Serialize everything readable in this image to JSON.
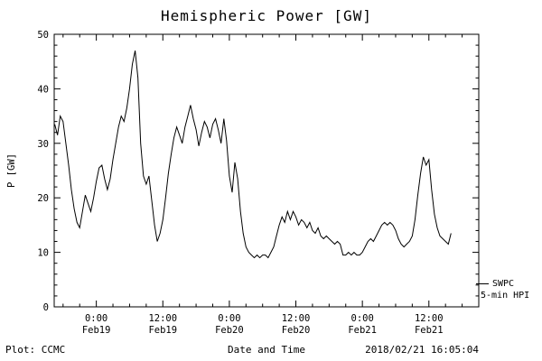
{
  "footer": {
    "credit": "Plot: CCMC",
    "timestamp": "2018/02/21 16:05:04"
  },
  "chart_data": {
    "type": "line",
    "title": "Hemispheric Power [GW]",
    "xlabel": "Date and Time",
    "ylabel": "P [GW]",
    "ylim": [
      0,
      50
    ],
    "yticks": [
      0,
      10,
      20,
      30,
      40,
      50
    ],
    "xlim_hours": [
      -7.6,
      69
    ],
    "x_axis_reference": "hours relative to Feb19 00:00",
    "xticks": [
      {
        "hour": 0,
        "time": "0:00",
        "date": "Feb19"
      },
      {
        "hour": 12,
        "time": "12:00",
        "date": "Feb19"
      },
      {
        "hour": 24,
        "time": "0:00",
        "date": "Feb20"
      },
      {
        "hour": 36,
        "time": "12:00",
        "date": "Feb20"
      },
      {
        "hour": 48,
        "time": "0:00",
        "date": "Feb21"
      },
      {
        "hour": 60,
        "time": "12:00",
        "date": "Feb21"
      }
    ],
    "grid": false,
    "legend_position": "right-bottom-outside",
    "legend_lines": [
      "SWPC",
      "5-min HPI"
    ],
    "series": [
      {
        "name": "SWPC 5-min HPI",
        "color": "#000000",
        "x_start_hour": -7.5,
        "x_step_hours": 0.5,
        "values": [
          33.5,
          31.5,
          35,
          34,
          30,
          26,
          21.5,
          18,
          15.5,
          14.5,
          17.5,
          20.5,
          19,
          17.5,
          20,
          23,
          25.5,
          26,
          23.5,
          21.5,
          23.5,
          27,
          30,
          33,
          35,
          34,
          36.5,
          40,
          44.5,
          47,
          42,
          30,
          24,
          22.5,
          24,
          19.5,
          15,
          12,
          13.5,
          16,
          20,
          24.5,
          28,
          31,
          33,
          31.5,
          30,
          33,
          35,
          37,
          34.5,
          32.5,
          29.5,
          32,
          34,
          33,
          31,
          33.5,
          34.5,
          32.5,
          30,
          34.5,
          30.5,
          24,
          21,
          26.5,
          23.5,
          17.5,
          13.5,
          11,
          10,
          9.5,
          9,
          9.5,
          9,
          9.5,
          9.5,
          9,
          10,
          11,
          13,
          15,
          16.5,
          15.5,
          17.5,
          16,
          17.5,
          16.5,
          15,
          16,
          15.5,
          14.5,
          15.5,
          14,
          13.5,
          14.5,
          13,
          12.5,
          13,
          12.5,
          12,
          11.5,
          12,
          11.5,
          9.5,
          9.5,
          10,
          9.5,
          10,
          9.5,
          9.5,
          10,
          11,
          12,
          12.5,
          12,
          13,
          14,
          15,
          15.5,
          15,
          15.5,
          15,
          14,
          12.5,
          11.5,
          11,
          11.5,
          12,
          13,
          16,
          20.5,
          24.5,
          27.5,
          26,
          27,
          21.5,
          17,
          14.5,
          13,
          12.5,
          12,
          11.5,
          13.5
        ]
      }
    ]
  }
}
